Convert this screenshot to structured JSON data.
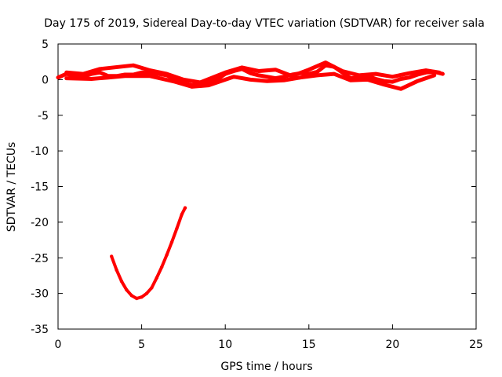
{
  "chart_data": {
    "type": "line",
    "title": "Day 175 of 2019, Sidereal Day-to-day VTEC variation (SDTVAR) for receiver sala",
    "xlabel": "GPS time / hours",
    "ylabel": "SDTVAR / TECUs",
    "xlim": [
      0,
      25
    ],
    "ylim": [
      -35,
      5
    ],
    "xticks": [
      0,
      5,
      10,
      15,
      20,
      25
    ],
    "yticks": [
      5,
      0,
      -5,
      -10,
      -15,
      -20,
      -25,
      -30,
      -35
    ],
    "grid": false,
    "legend": "none",
    "color": "#ff0000",
    "series": [
      {
        "name": "sdtvar-main",
        "x": [
          0,
          0.5,
          1,
          1.5,
          2,
          2.5,
          3,
          3.5,
          4,
          4.5,
          5,
          5.5,
          6,
          6.5,
          7,
          7.5,
          8,
          8.5,
          9,
          9.5,
          10,
          10.5,
          11,
          11.5,
          12,
          12.5,
          13,
          13.5,
          14,
          14.5,
          15,
          15.5,
          16,
          16.5,
          17,
          17.5,
          18,
          18.5,
          19,
          19.5,
          20,
          20.5,
          21,
          21.5,
          22,
          22.5,
          23
        ],
        "y": [
          0.3,
          0.8,
          0.5,
          0.4,
          0.8,
          1,
          0.5,
          0.5,
          0.7,
          0.7,
          1.0,
          0.9,
          0.8,
          0.6,
          0.1,
          -0.5,
          -0.8,
          -0.7,
          -0.5,
          0.0,
          0.8,
          1.2,
          1.5,
          0.9,
          0.6,
          0.4,
          0.2,
          0.4,
          0.7,
          0.9,
          0.8,
          1.1,
          2.0,
          1.8,
          1.0,
          0.2,
          0.3,
          0.5,
          0.1,
          -0.2,
          -0.3,
          0.1,
          0.3,
          0.7,
          1.0,
          1.1,
          0.8
        ]
      },
      {
        "name": "sdtvar-spread-upper",
        "x": [
          0.5,
          1.5,
          2.5,
          4.5,
          5.5,
          6.5,
          7.5,
          8.5,
          10,
          11,
          12,
          13,
          14,
          15,
          16,
          17,
          18,
          19,
          20,
          21,
          22,
          22.8
        ],
        "y": [
          1.0,
          0.8,
          1.5,
          2.0,
          1.3,
          0.8,
          0.0,
          -0.4,
          1.0,
          1.7,
          1.2,
          1.4,
          0.5,
          1.4,
          2.4,
          1.2,
          0.6,
          0.8,
          0.4,
          0.9,
          1.3,
          1.0
        ]
      },
      {
        "name": "sdtvar-spread-lower",
        "x": [
          0.5,
          2,
          3,
          4,
          5.5,
          7,
          8,
          9,
          10.5,
          11.5,
          12.5,
          13.5,
          14.5,
          15.5,
          16.5,
          17.5,
          18.5,
          19.5,
          20.5,
          21.5,
          22.5
        ],
        "y": [
          0.2,
          0.1,
          0.3,
          0.5,
          0.5,
          -0.3,
          -1.0,
          -0.8,
          0.4,
          0.0,
          -0.2,
          -0.1,
          0.3,
          0.6,
          0.8,
          -0.1,
          0.0,
          -0.7,
          -1.3,
          -0.2,
          0.6
        ]
      },
      {
        "name": "sdtvar-anomaly",
        "x": [
          3.2,
          3.5,
          3.8,
          4.1,
          4.4,
          4.7,
          5.0,
          5.3,
          5.6,
          5.9,
          6.2,
          6.5,
          6.8,
          7.1,
          7.4,
          7.6
        ],
        "y": [
          -24.8,
          -26.7,
          -28.3,
          -29.5,
          -30.3,
          -30.7,
          -30.5,
          -30.0,
          -29.2,
          -27.8,
          -26.3,
          -24.6,
          -22.8,
          -20.9,
          -18.9,
          -18.0
        ]
      }
    ]
  }
}
